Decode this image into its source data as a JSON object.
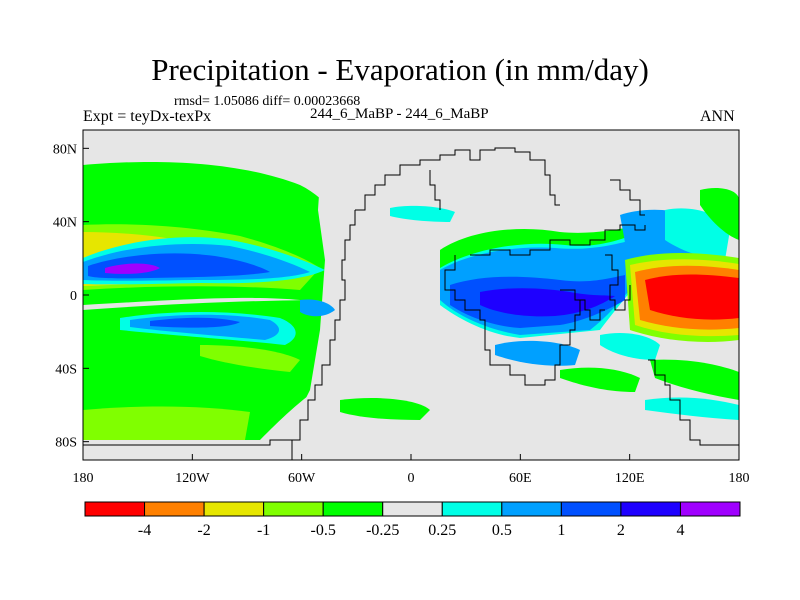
{
  "header": {
    "title": "Precipitation - Evaporation (in mm/day)",
    "stats": "rmsd= 1.05086 diff= 0.00023668",
    "experiment": "Expt = teyDx-texPx",
    "runs": "244_6_MaBP - 244_6_MaBP",
    "season": "ANN"
  },
  "chart_data": {
    "type": "heatmap",
    "title": "Precipitation - Evaporation (in mm/day)",
    "subtitle": "244_6_MaBP - 244_6_MaBP",
    "xlim": [
      -180,
      180
    ],
    "ylim": [
      -90,
      90
    ],
    "x_ticks": [
      {
        "value": -180,
        "label": "180"
      },
      {
        "value": -120,
        "label": "120W"
      },
      {
        "value": -60,
        "label": "60W"
      },
      {
        "value": 0,
        "label": "0"
      },
      {
        "value": 60,
        "label": "60E"
      },
      {
        "value": 120,
        "label": "120E"
      },
      {
        "value": 180,
        "label": "180"
      }
    ],
    "y_ticks": [
      {
        "value": 80,
        "label": "80N"
      },
      {
        "value": 40,
        "label": "40N"
      },
      {
        "value": 0,
        "label": "0"
      },
      {
        "value": -40,
        "label": "40S"
      },
      {
        "value": -80,
        "label": "80S"
      }
    ],
    "colorbar": {
      "boundaries": [
        "-4",
        "-2",
        "-1",
        "-0.5",
        "-0.25",
        "0.25",
        "0.5",
        "1",
        "2",
        "4"
      ],
      "colors": [
        "#ff0000",
        "#ff8000",
        "#e6e600",
        "#80ff00",
        "#00ff00",
        "#e6e6e6",
        "#00ffe6",
        "#00a0ff",
        "#0050ff",
        "#1e00ff",
        "#a000ff"
      ]
    }
  }
}
